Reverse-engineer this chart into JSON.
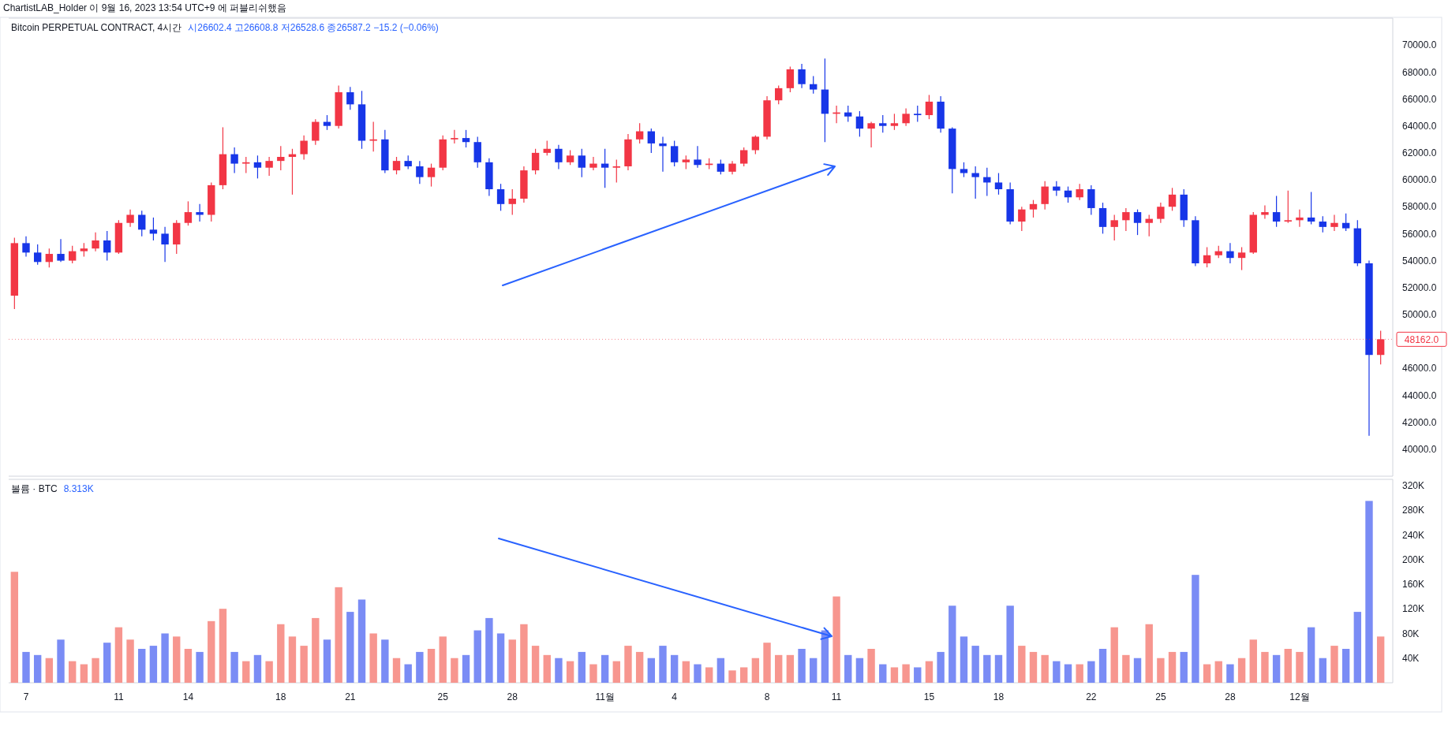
{
  "chart_data": [
    {
      "type": "candlestick",
      "title": "Bitcoin PERPETUAL CONTRACT, 4시간",
      "subtitle": "시26602.4 고26608.8 저26528.6 종26587.2 −15.2 (−0.06%)",
      "annotations": [
        "ChartistLAB_Holder 이 9월 16, 2023 13:54 UTC+9 에 퍼블리쉬했음"
      ],
      "ref_lines": [
        {
          "axis": "y",
          "value": 48162,
          "label": "48162.0",
          "color": "#f23645",
          "line_style": "dotted"
        }
      ],
      "categories": [
        null,
        null,
        null,
        null,
        null,
        null,
        null,
        null,
        null,
        null,
        null,
        null,
        null,
        null,
        null,
        null,
        null,
        null,
        null,
        null,
        null,
        null,
        null,
        null,
        null,
        null,
        null,
        null,
        null,
        null,
        null,
        null,
        null,
        null,
        null,
        null,
        null,
        null,
        null,
        null,
        null,
        null,
        null,
        null,
        null,
        null,
        null,
        null,
        null,
        null,
        null,
        null,
        null,
        null,
        null,
        null,
        null,
        null,
        null,
        null,
        null,
        null,
        null,
        null,
        null,
        null,
        null,
        null,
        null,
        null,
        null,
        null,
        null,
        null,
        null,
        null,
        null,
        null,
        null,
        null,
        null,
        null,
        null,
        null,
        null,
        null,
        null,
        null,
        null,
        null,
        null,
        null,
        null,
        null,
        null,
        null,
        null,
        null,
        null,
        null,
        null,
        null,
        null,
        null,
        null,
        null,
        null,
        null,
        null,
        null,
        null,
        null,
        null,
        null,
        null,
        null,
        null,
        null,
        null
      ],
      "ohlc": [
        [
          51400,
          55700,
          50400,
          55300
        ],
        [
          55300,
          55800,
          54300,
          54600
        ],
        [
          54600,
          55200,
          53700,
          53900
        ],
        [
          53900,
          54900,
          53500,
          54500
        ],
        [
          54500,
          55600,
          53900,
          54000
        ],
        [
          54000,
          55100,
          53800,
          54700
        ],
        [
          54700,
          55300,
          54300,
          54900
        ],
        [
          54900,
          56100,
          54700,
          55500
        ],
        [
          55500,
          56200,
          54000,
          54600
        ],
        [
          54600,
          57000,
          54500,
          56800
        ],
        [
          56800,
          57800,
          56500,
          57400
        ],
        [
          57400,
          57700,
          55800,
          56300
        ],
        [
          56300,
          57200,
          55500,
          56000
        ],
        [
          56000,
          56500,
          53900,
          55200
        ],
        [
          55200,
          57000,
          54500,
          56800
        ],
        [
          56800,
          58400,
          56600,
          57600
        ],
        [
          57600,
          58200,
          56900,
          57400
        ],
        [
          57400,
          59800,
          56900,
          59600
        ],
        [
          59600,
          63900,
          59300,
          61900
        ],
        [
          61900,
          62400,
          60500,
          61200
        ],
        [
          61200,
          61700,
          60500,
          61300
        ],
        [
          61300,
          61800,
          60100,
          60900
        ],
        [
          60900,
          61700,
          60300,
          61400
        ],
        [
          61400,
          62500,
          60700,
          61700
        ],
        [
          61700,
          62300,
          58900,
          61900
        ],
        [
          61900,
          63300,
          61500,
          62900
        ],
        [
          62900,
          64500,
          62600,
          64300
        ],
        [
          64300,
          64800,
          63700,
          64000
        ],
        [
          64000,
          67000,
          63800,
          66500
        ],
        [
          66500,
          66900,
          65200,
          65600
        ],
        [
          65600,
          66600,
          62300,
          62900
        ],
        [
          62900,
          64300,
          62100,
          63000
        ],
        [
          63000,
          63700,
          60500,
          60700
        ],
        [
          60700,
          61700,
          60400,
          61400
        ],
        [
          61400,
          61800,
          60800,
          61000
        ],
        [
          61000,
          61400,
          59700,
          60200
        ],
        [
          60200,
          61200,
          59500,
          60900
        ],
        [
          60900,
          63300,
          60700,
          63000
        ],
        [
          63000,
          63700,
          62700,
          63100
        ],
        [
          63100,
          63700,
          62400,
          62800
        ],
        [
          62800,
          63200,
          60900,
          61300
        ],
        [
          61300,
          61600,
          58800,
          59300
        ],
        [
          59300,
          59700,
          57700,
          58200
        ],
        [
          58200,
          59300,
          57400,
          58600
        ],
        [
          58600,
          61000,
          58300,
          60700
        ],
        [
          60700,
          62300,
          60400,
          62000
        ],
        [
          62000,
          62900,
          61800,
          62300
        ],
        [
          62300,
          62600,
          60800,
          61300
        ],
        [
          61300,
          62200,
          61100,
          61800
        ],
        [
          61800,
          62300,
          60200,
          60900
        ],
        [
          60900,
          61700,
          60700,
          61200
        ],
        [
          61200,
          62300,
          59400,
          60900
        ],
        [
          60900,
          61500,
          59800,
          61000
        ],
        [
          61000,
          63400,
          60700,
          63000
        ],
        [
          63000,
          64200,
          62700,
          63600
        ],
        [
          63600,
          63800,
          62000,
          62700
        ],
        [
          62700,
          63200,
          60600,
          62500
        ],
        [
          62500,
          62900,
          61000,
          61300
        ],
        [
          61300,
          61800,
          60800,
          61500
        ],
        [
          61500,
          62500,
          60900,
          61100
        ],
        [
          61100,
          61600,
          60800,
          61200
        ],
        [
          61200,
          61500,
          60400,
          60600
        ],
        [
          60600,
          61400,
          60400,
          61200
        ],
        [
          61200,
          62400,
          61000,
          62200
        ],
        [
          62200,
          63300,
          61900,
          63200
        ],
        [
          63200,
          66200,
          63000,
          65900
        ],
        [
          65900,
          67000,
          65600,
          66800
        ],
        [
          66800,
          68400,
          66500,
          68200
        ],
        [
          68200,
          68600,
          66800,
          67100
        ],
        [
          67100,
          67700,
          66400,
          66700
        ],
        [
          66700,
          69000,
          62800,
          64900
        ],
        [
          64900,
          65500,
          64200,
          65000
        ],
        [
          65000,
          65500,
          64300,
          64700
        ],
        [
          64700,
          65100,
          63200,
          63800
        ],
        [
          63800,
          64300,
          62400,
          64200
        ],
        [
          64200,
          64800,
          63500,
          64000
        ],
        [
          64000,
          64900,
          63700,
          64200
        ],
        [
          64200,
          65300,
          64000,
          64900
        ],
        [
          64900,
          65500,
          64300,
          64800
        ],
        [
          64800,
          66300,
          64500,
          65800
        ],
        [
          65800,
          66200,
          63500,
          63800
        ],
        [
          63800,
          63900,
          59000,
          60800
        ],
        [
          60800,
          61300,
          60200,
          60500
        ],
        [
          60500,
          61000,
          58600,
          60200
        ],
        [
          60200,
          60900,
          58800,
          59800
        ],
        [
          59800,
          60500,
          58900,
          59300
        ],
        [
          59300,
          59800,
          56700,
          56900
        ],
        [
          56900,
          58000,
          56200,
          57800
        ],
        [
          57800,
          58500,
          57200,
          58200
        ],
        [
          58200,
          59900,
          57800,
          59500
        ],
        [
          59500,
          59900,
          58800,
          59200
        ],
        [
          59200,
          59500,
          58300,
          58700
        ],
        [
          58700,
          59700,
          58500,
          59300
        ],
        [
          59300,
          59600,
          57400,
          57900
        ],
        [
          57900,
          58300,
          56000,
          56500
        ],
        [
          56500,
          57400,
          55500,
          57000
        ],
        [
          57000,
          57900,
          56200,
          57600
        ],
        [
          57600,
          57800,
          55900,
          56800
        ],
        [
          56800,
          57400,
          55800,
          57100
        ],
        [
          57100,
          58300,
          56800,
          58000
        ],
        [
          58000,
          59400,
          57700,
          58900
        ],
        [
          58900,
          59300,
          56500,
          57000
        ],
        [
          57000,
          57300,
          53600,
          53800
        ],
        [
          53800,
          55000,
          53500,
          54400
        ],
        [
          54400,
          55100,
          54200,
          54700
        ],
        [
          54700,
          55300,
          53800,
          54200
        ],
        [
          54200,
          55000,
          53300,
          54600
        ],
        [
          54600,
          57600,
          54500,
          57400
        ],
        [
          57400,
          58100,
          57100,
          57600
        ],
        [
          57600,
          58800,
          56500,
          56900
        ],
        [
          56900,
          59200,
          56800,
          57000
        ],
        [
          57000,
          57800,
          56500,
          57200
        ],
        [
          57200,
          59100,
          56700,
          56900
        ],
        [
          56900,
          57300,
          56100,
          56500
        ],
        [
          56500,
          57400,
          56200,
          56800
        ],
        [
          56800,
          57500,
          56200,
          56400
        ],
        [
          56400,
          57000,
          53600,
          53800
        ],
        [
          53800,
          54000,
          41000,
          47000
        ],
        [
          47000,
          48800,
          46300,
          48162
        ]
      ],
      "colors": [
        "#f23645",
        "#1736e8",
        "#1736e8",
        "#f23645",
        "#1736e8",
        "#f23645",
        "#f23645",
        "#f23645",
        "#1736e8",
        "#f23645",
        "#f23645",
        "#1736e8",
        "#1736e8",
        "#1736e8",
        "#f23645",
        "#f23645",
        "#1736e8",
        "#f23645",
        "#f23645",
        "#1736e8",
        "#f23645",
        "#1736e8",
        "#f23645",
        "#f23645",
        "#f23645",
        "#f23645",
        "#f23645",
        "#1736e8",
        "#f23645",
        "#1736e8",
        "#1736e8",
        "#f23645",
        "#1736e8",
        "#f23645",
        "#1736e8",
        "#1736e8",
        "#f23645",
        "#f23645",
        "#f23645",
        "#1736e8",
        "#1736e8",
        "#1736e8",
        "#1736e8",
        "#f23645",
        "#f23645",
        "#f23645",
        "#f23645",
        "#1736e8",
        "#f23645",
        "#1736e8",
        "#f23645",
        "#1736e8",
        "#f23645",
        "#f23645",
        "#f23645",
        "#1736e8",
        "#1736e8",
        "#1736e8",
        "#f23645",
        "#1736e8",
        "#f23645",
        "#1736e8",
        "#f23645",
        "#f23645",
        "#f23645",
        "#f23645",
        "#f23645",
        "#f23645",
        "#1736e8",
        "#1736e8",
        "#1736e8",
        "#f23645",
        "#1736e8",
        "#1736e8",
        "#f23645",
        "#1736e8",
        "#f23645",
        "#f23645",
        "#1736e8",
        "#f23645",
        "#1736e8",
        "#1736e8",
        "#1736e8",
        "#1736e8",
        "#1736e8",
        "#1736e8",
        "#1736e8",
        "#f23645",
        "#f23645",
        "#f23645",
        "#1736e8",
        "#1736e8",
        "#f23645",
        "#1736e8",
        "#1736e8",
        "#f23645",
        "#f23645",
        "#1736e8",
        "#f23645",
        "#f23645",
        "#f23645",
        "#1736e8",
        "#1736e8",
        "#f23645",
        "#f23645",
        "#1736e8",
        "#f23645",
        "#f23645",
        "#f23645",
        "#1736e8",
        "#f23645",
        "#f23645",
        "#1736e8",
        "#1736e8",
        "#f23645",
        "#1736e8",
        "#1736e8",
        "#1736e8",
        "#f23645"
      ],
      "ylim": [
        38000,
        72000
      ],
      "yticks": [
        {
          "value": 40000,
          "label": "40000.0"
        },
        {
          "value": 42000,
          "label": "42000.0"
        },
        {
          "value": 44000,
          "label": "44000.0"
        },
        {
          "value": 46000,
          "label": "46000.0"
        },
        {
          "value": 50000,
          "label": "50000.0"
        },
        {
          "value": 52000,
          "label": "52000.0"
        },
        {
          "value": 54000,
          "label": "54000.0"
        },
        {
          "value": 56000,
          "label": "56000.0"
        },
        {
          "value": 58000,
          "label": "58000.0"
        },
        {
          "value": 60000,
          "label": "60000.0"
        },
        {
          "value": 62000,
          "label": "62000.0"
        },
        {
          "value": 64000,
          "label": "64000.0"
        },
        {
          "value": 66000,
          "label": "66000.0"
        },
        {
          "value": 68000,
          "label": "68000.0"
        },
        {
          "value": 70000,
          "label": "70000.0"
        }
      ],
      "tick_labels": "y"
    },
    {
      "type": "bar",
      "title": "볼륨 · BTC",
      "subtitle": "8.313K",
      "categories": [
        null,
        "7",
        null,
        null,
        null,
        null,
        null,
        null,
        null,
        "11",
        null,
        null,
        null,
        null,
        null,
        "14",
        null,
        null,
        null,
        null,
        null,
        null,
        null,
        "18",
        null,
        null,
        null,
        null,
        null,
        "21",
        null,
        null,
        null,
        null,
        null,
        null,
        null,
        "25",
        null,
        null,
        null,
        null,
        null,
        "28",
        null,
        null,
        null,
        null,
        null,
        null,
        null,
        "11월",
        null,
        null,
        null,
        null,
        null,
        "4",
        null,
        null,
        null,
        null,
        null,
        null,
        null,
        "8",
        null,
        null,
        null,
        null,
        null,
        "11",
        null,
        null,
        null,
        null,
        null,
        null,
        null,
        "15",
        null,
        null,
        null,
        null,
        null,
        "18",
        null,
        null,
        null,
        null,
        null,
        null,
        null,
        "22",
        null,
        null,
        null,
        null,
        null,
        "25",
        null,
        null,
        null,
        null,
        null,
        "28",
        null,
        null,
        null,
        null,
        null,
        "12월",
        null,
        null,
        null,
        null,
        null,
        null,
        null
      ],
      "values": [
        180000,
        50000,
        45000,
        40000,
        70000,
        35000,
        30000,
        40000,
        65000,
        90000,
        70000,
        55000,
        60000,
        80000,
        75000,
        55000,
        50000,
        100000,
        120000,
        50000,
        35000,
        45000,
        35000,
        95000,
        75000,
        60000,
        105000,
        70000,
        155000,
        115000,
        135000,
        80000,
        70000,
        40000,
        30000,
        50000,
        55000,
        75000,
        40000,
        45000,
        85000,
        105000,
        80000,
        70000,
        95000,
        60000,
        45000,
        40000,
        35000,
        50000,
        30000,
        45000,
        35000,
        60000,
        50000,
        40000,
        60000,
        45000,
        35000,
        30000,
        25000,
        40000,
        20000,
        25000,
        40000,
        65000,
        45000,
        45000,
        55000,
        40000,
        85000,
        140000,
        45000,
        40000,
        55000,
        30000,
        25000,
        30000,
        25000,
        35000,
        50000,
        125000,
        75000,
        60000,
        45000,
        45000,
        125000,
        60000,
        50000,
        45000,
        35000,
        30000,
        30000,
        35000,
        55000,
        90000,
        45000,
        40000,
        95000,
        40000,
        50000,
        50000,
        175000,
        30000,
        35000,
        30000,
        40000,
        70000,
        50000,
        45000,
        55000,
        50000,
        90000,
        40000,
        60000,
        55000,
        115000,
        295000,
        75000
      ],
      "colors": [
        "#f7968f",
        "#7a8cf5",
        "#7a8cf5",
        "#f7968f",
        "#7a8cf5",
        "#f7968f",
        "#f7968f",
        "#f7968f",
        "#7a8cf5",
        "#f7968f",
        "#f7968f",
        "#7a8cf5",
        "#7a8cf5",
        "#7a8cf5",
        "#f7968f",
        "#f7968f",
        "#7a8cf5",
        "#f7968f",
        "#f7968f",
        "#7a8cf5",
        "#f7968f",
        "#7a8cf5",
        "#f7968f",
        "#f7968f",
        "#f7968f",
        "#f7968f",
        "#f7968f",
        "#7a8cf5",
        "#f7968f",
        "#7a8cf5",
        "#7a8cf5",
        "#f7968f",
        "#7a8cf5",
        "#f7968f",
        "#7a8cf5",
        "#7a8cf5",
        "#f7968f",
        "#f7968f",
        "#f7968f",
        "#7a8cf5",
        "#7a8cf5",
        "#7a8cf5",
        "#7a8cf5",
        "#f7968f",
        "#f7968f",
        "#f7968f",
        "#f7968f",
        "#7a8cf5",
        "#f7968f",
        "#7a8cf5",
        "#f7968f",
        "#7a8cf5",
        "#f7968f",
        "#f7968f",
        "#f7968f",
        "#7a8cf5",
        "#7a8cf5",
        "#7a8cf5",
        "#f7968f",
        "#7a8cf5",
        "#f7968f",
        "#7a8cf5",
        "#f7968f",
        "#f7968f",
        "#f7968f",
        "#f7968f",
        "#f7968f",
        "#f7968f",
        "#7a8cf5",
        "#7a8cf5",
        "#7a8cf5",
        "#f7968f",
        "#7a8cf5",
        "#7a8cf5",
        "#f7968f",
        "#7a8cf5",
        "#f7968f",
        "#f7968f",
        "#7a8cf5",
        "#f7968f",
        "#7a8cf5",
        "#7a8cf5",
        "#7a8cf5",
        "#7a8cf5",
        "#7a8cf5",
        "#7a8cf5",
        "#7a8cf5",
        "#f7968f",
        "#f7968f",
        "#f7968f",
        "#7a8cf5",
        "#7a8cf5",
        "#f7968f",
        "#7a8cf5",
        "#7a8cf5",
        "#f7968f",
        "#f7968f",
        "#7a8cf5",
        "#f7968f",
        "#f7968f",
        "#f7968f",
        "#7a8cf5",
        "#7a8cf5",
        "#f7968f",
        "#f7968f",
        "#7a8cf5",
        "#f7968f",
        "#f7968f",
        "#f7968f",
        "#7a8cf5",
        "#f7968f",
        "#f7968f",
        "#7a8cf5",
        "#7a8cf5",
        "#f7968f",
        "#7a8cf5",
        "#7a8cf5",
        "#7a8cf5",
        "#f7968f"
      ],
      "ylim": [
        0,
        330000
      ],
      "yticks": [
        {
          "value": 40000,
          "label": "40K"
        },
        {
          "value": 80000,
          "label": "80K"
        },
        {
          "value": 120000,
          "label": "120K"
        },
        {
          "value": 160000,
          "label": "160K"
        },
        {
          "value": 200000,
          "label": "200K"
        },
        {
          "value": 240000,
          "label": "240K"
        },
        {
          "value": 280000,
          "label": "280K"
        },
        {
          "value": 320000,
          "label": "320K"
        }
      ]
    }
  ]
}
